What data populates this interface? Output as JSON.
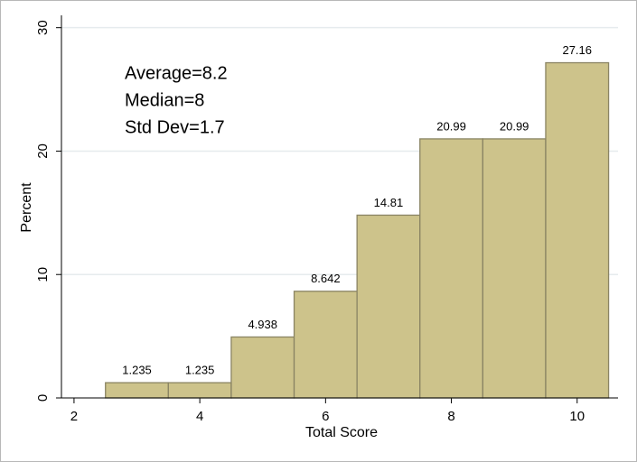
{
  "chart_data": {
    "type": "histogram",
    "bins": [
      2.5,
      3.5,
      4.5,
      5.5,
      6.5,
      7.5,
      8.5,
      9.5,
      10.5
    ],
    "values": [
      1.235,
      1.235,
      4.938,
      8.642,
      14.81,
      20.99,
      20.99,
      27.16
    ],
    "color": "#cdc38b",
    "edge_color": "#8a8463",
    "xlabel": "Total Score",
    "ylabel": "Percent",
    "xlim": [
      1.8,
      10.65
    ],
    "xticks": [
      2,
      4,
      6,
      8,
      10
    ],
    "ylim": [
      0,
      31
    ],
    "yticks": [
      0,
      10,
      20,
      30
    ],
    "grid": true,
    "annotations": [
      "Average=8.2",
      "Median=8",
      "Std Dev=1.7"
    ]
  }
}
